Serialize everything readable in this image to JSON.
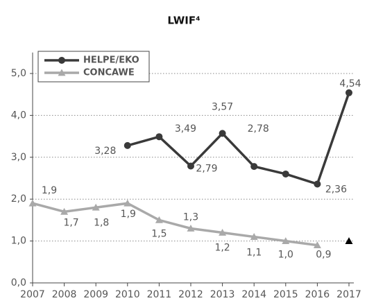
{
  "chart_data": {
    "type": "line",
    "title": "LWIF⁴",
    "categories": [
      "2007",
      "2008",
      "2009",
      "2010",
      "2011",
      "2012",
      "2013",
      "2014",
      "2015",
      "2016",
      "2017"
    ],
    "series": [
      {
        "name": "HELPE/EKO",
        "color": "#3a3a3a",
        "marker": "circle",
        "values": [
          null,
          null,
          null,
          3.28,
          3.49,
          2.79,
          3.57,
          2.78,
          2.6,
          2.36,
          4.54
        ],
        "value_labels": [
          null,
          null,
          null,
          "3,28",
          "3,49",
          "2,79",
          "3,57",
          "2,78",
          null,
          "2,36",
          "4,54"
        ]
      },
      {
        "name": "CONCAWE",
        "color": "#a9a9a9",
        "marker": "triangle",
        "values": [
          1.9,
          1.7,
          1.8,
          1.9,
          1.5,
          1.3,
          1.2,
          1.1,
          1.0,
          0.9,
          null
        ],
        "value_labels": [
          "1,9",
          "1,7",
          "1,8",
          "1,9",
          "1,5",
          "1,3",
          "1,2",
          "1,1",
          "1,0",
          "0,9",
          null
        ]
      }
    ],
    "markers": [
      {
        "category": "2017",
        "value": 1.0,
        "color": "#000000",
        "shape": "triangle"
      }
    ],
    "ylim": [
      0,
      5.5
    ],
    "yticks": [
      {
        "value": 0,
        "label": "0,0"
      },
      {
        "value": 1,
        "label": "1,0"
      },
      {
        "value": 2,
        "label": "2,0"
      },
      {
        "value": 3,
        "label": "3,0"
      },
      {
        "value": 4,
        "label": "4,0"
      },
      {
        "value": 5,
        "label": "5,0"
      }
    ],
    "grid": true,
    "legend": "top-left"
  }
}
